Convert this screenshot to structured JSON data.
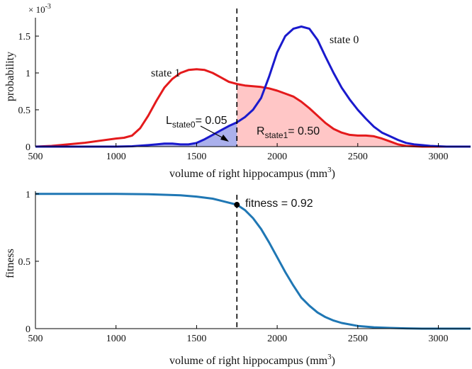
{
  "chart_data": [
    {
      "type": "line",
      "xlabel": "volume of right hippocampus (mm",
      "xlabel_sup": "3",
      "xlabel_close": ")",
      "ylabel": "probability",
      "exponent_label": "× 10",
      "exponent_power": "-3",
      "xlim": [
        500,
        3200
      ],
      "ylim": [
        0,
        1.75
      ],
      "xticks": [
        500,
        1000,
        1500,
        2000,
        2500,
        3000
      ],
      "yticks": [
        0,
        0.5,
        1,
        1.5
      ],
      "ytick_labels": [
        "0",
        "0.5",
        "1",
        "1.5"
      ],
      "threshold": 1750,
      "series": [
        {
          "name": "state 1",
          "color": "#e41a1c",
          "x": [
            500,
            600,
            700,
            800,
            900,
            1000,
            1050,
            1100,
            1150,
            1200,
            1250,
            1300,
            1350,
            1400,
            1450,
            1500,
            1550,
            1600,
            1650,
            1700,
            1750,
            1800,
            1850,
            1900,
            1950,
            2000,
            2050,
            2100,
            2150,
            2200,
            2250,
            2300,
            2350,
            2400,
            2450,
            2500,
            2550,
            2600,
            2650,
            2700,
            2750,
            2800,
            2900,
            3000,
            3100,
            3200
          ],
          "y": [
            0.0,
            0.01,
            0.03,
            0.05,
            0.08,
            0.11,
            0.12,
            0.15,
            0.25,
            0.42,
            0.62,
            0.8,
            0.92,
            1.0,
            1.04,
            1.05,
            1.04,
            1.0,
            0.94,
            0.88,
            0.85,
            0.83,
            0.82,
            0.81,
            0.79,
            0.76,
            0.72,
            0.68,
            0.61,
            0.52,
            0.42,
            0.32,
            0.24,
            0.19,
            0.16,
            0.15,
            0.15,
            0.14,
            0.11,
            0.07,
            0.03,
            0.01,
            0.0,
            0.0,
            0.0,
            0.0
          ]
        },
        {
          "name": "state 0",
          "color": "#1a1acd",
          "x": [
            500,
            1000,
            1100,
            1200,
            1250,
            1300,
            1350,
            1400,
            1450,
            1500,
            1550,
            1600,
            1650,
            1700,
            1750,
            1800,
            1850,
            1900,
            1950,
            2000,
            2050,
            2100,
            2150,
            2200,
            2250,
            2300,
            2350,
            2400,
            2450,
            2500,
            2550,
            2600,
            2650,
            2700,
            2750,
            2800,
            2850,
            2900,
            2950,
            3000,
            3050,
            3100,
            3200
          ],
          "y": [
            0.0,
            0.0,
            0.005,
            0.02,
            0.03,
            0.04,
            0.04,
            0.03,
            0.03,
            0.05,
            0.1,
            0.16,
            0.22,
            0.28,
            0.33,
            0.4,
            0.5,
            0.66,
            0.95,
            1.28,
            1.5,
            1.6,
            1.63,
            1.6,
            1.45,
            1.22,
            1.0,
            0.8,
            0.64,
            0.5,
            0.38,
            0.27,
            0.19,
            0.14,
            0.09,
            0.05,
            0.03,
            0.02,
            0.01,
            0.005,
            0.0,
            0.0,
            0.0
          ]
        }
      ],
      "annotations": {
        "state1_label": "state 1",
        "state0_label": "state 0",
        "L_main": "L",
        "L_sub": "state0",
        "L_value": "= 0.05",
        "R_main": "R",
        "R_sub": "state1",
        "R_value": "= 0.50"
      },
      "fill_colors": {
        "left": "#aab0ec",
        "right": "#ffc6c6"
      }
    },
    {
      "type": "line",
      "xlabel": "volume of right hippocampus (mm",
      "xlabel_sup": "3",
      "xlabel_close": ")",
      "ylabel": "fitness",
      "xlim": [
        500,
        3200
      ],
      "ylim": [
        0,
        1.02
      ],
      "xticks": [
        500,
        1000,
        1500,
        2000,
        2500,
        3000
      ],
      "yticks": [
        0,
        0.5,
        1
      ],
      "ytick_labels": [
        "0",
        "0.5",
        "1"
      ],
      "threshold": 1750,
      "series": [
        {
          "color": "#1f77b4",
          "x": [
            500,
            1000,
            1200,
            1400,
            1500,
            1600,
            1650,
            1700,
            1750,
            1800,
            1850,
            1900,
            1950,
            2000,
            2050,
            2100,
            2150,
            2200,
            2250,
            2300,
            2350,
            2400,
            2500,
            2600,
            2700,
            2800,
            2900,
            3000,
            3200
          ],
          "y": [
            1.0,
            1.0,
            0.998,
            0.99,
            0.98,
            0.965,
            0.95,
            0.935,
            0.92,
            0.88,
            0.82,
            0.74,
            0.64,
            0.53,
            0.42,
            0.32,
            0.23,
            0.17,
            0.12,
            0.085,
            0.06,
            0.042,
            0.02,
            0.01,
            0.005,
            0.002,
            0.0,
            0.0,
            0.0
          ]
        }
      ],
      "point": {
        "x": 1750,
        "y": 0.92,
        "label": "fitness = 0.92"
      }
    }
  ]
}
